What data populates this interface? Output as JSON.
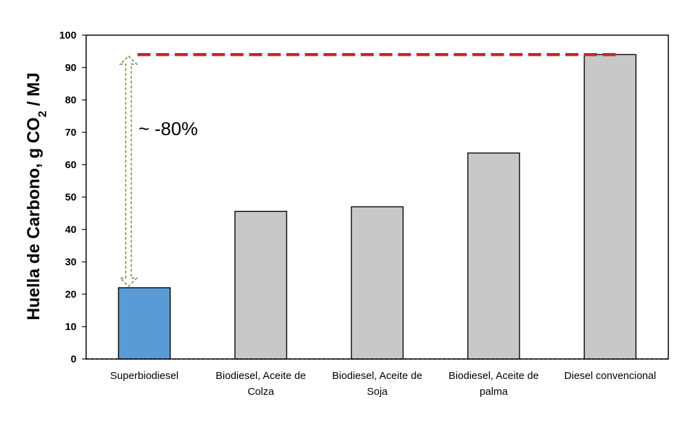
{
  "chart_data": {
    "type": "bar",
    "ylabel": "Huella de Carbono, g CO2 / MJ",
    "ylabel_parts": {
      "main": "Huella de Carbono, g CO",
      "sub": "2",
      "tail": " / MJ"
    },
    "ylim": [
      0,
      100
    ],
    "yticks": [
      0,
      10,
      20,
      30,
      40,
      50,
      60,
      70,
      80,
      90,
      100
    ],
    "categories": [
      [
        "Superbiodiesel"
      ],
      [
        "Biodiesel, Aceite de",
        "Colza"
      ],
      [
        "Biodiesel, Aceite de",
        "Soja"
      ],
      [
        "Biodiesel, Aceite de",
        "palma"
      ],
      [
        "Diesel convencional"
      ]
    ],
    "values": [
      22,
      45.6,
      47,
      63.6,
      94
    ],
    "bar_colors": [
      "#5b9bd5",
      "#c8c8c8",
      "#c8c8c8",
      "#c8c8c8",
      "#c8c8c8"
    ],
    "reference_line": {
      "value": 94,
      "color": "#c0282d"
    },
    "annotation": {
      "text": "~ -80%",
      "from": 22,
      "to": 94,
      "arrow_color": "#70913a"
    },
    "grid": false
  }
}
